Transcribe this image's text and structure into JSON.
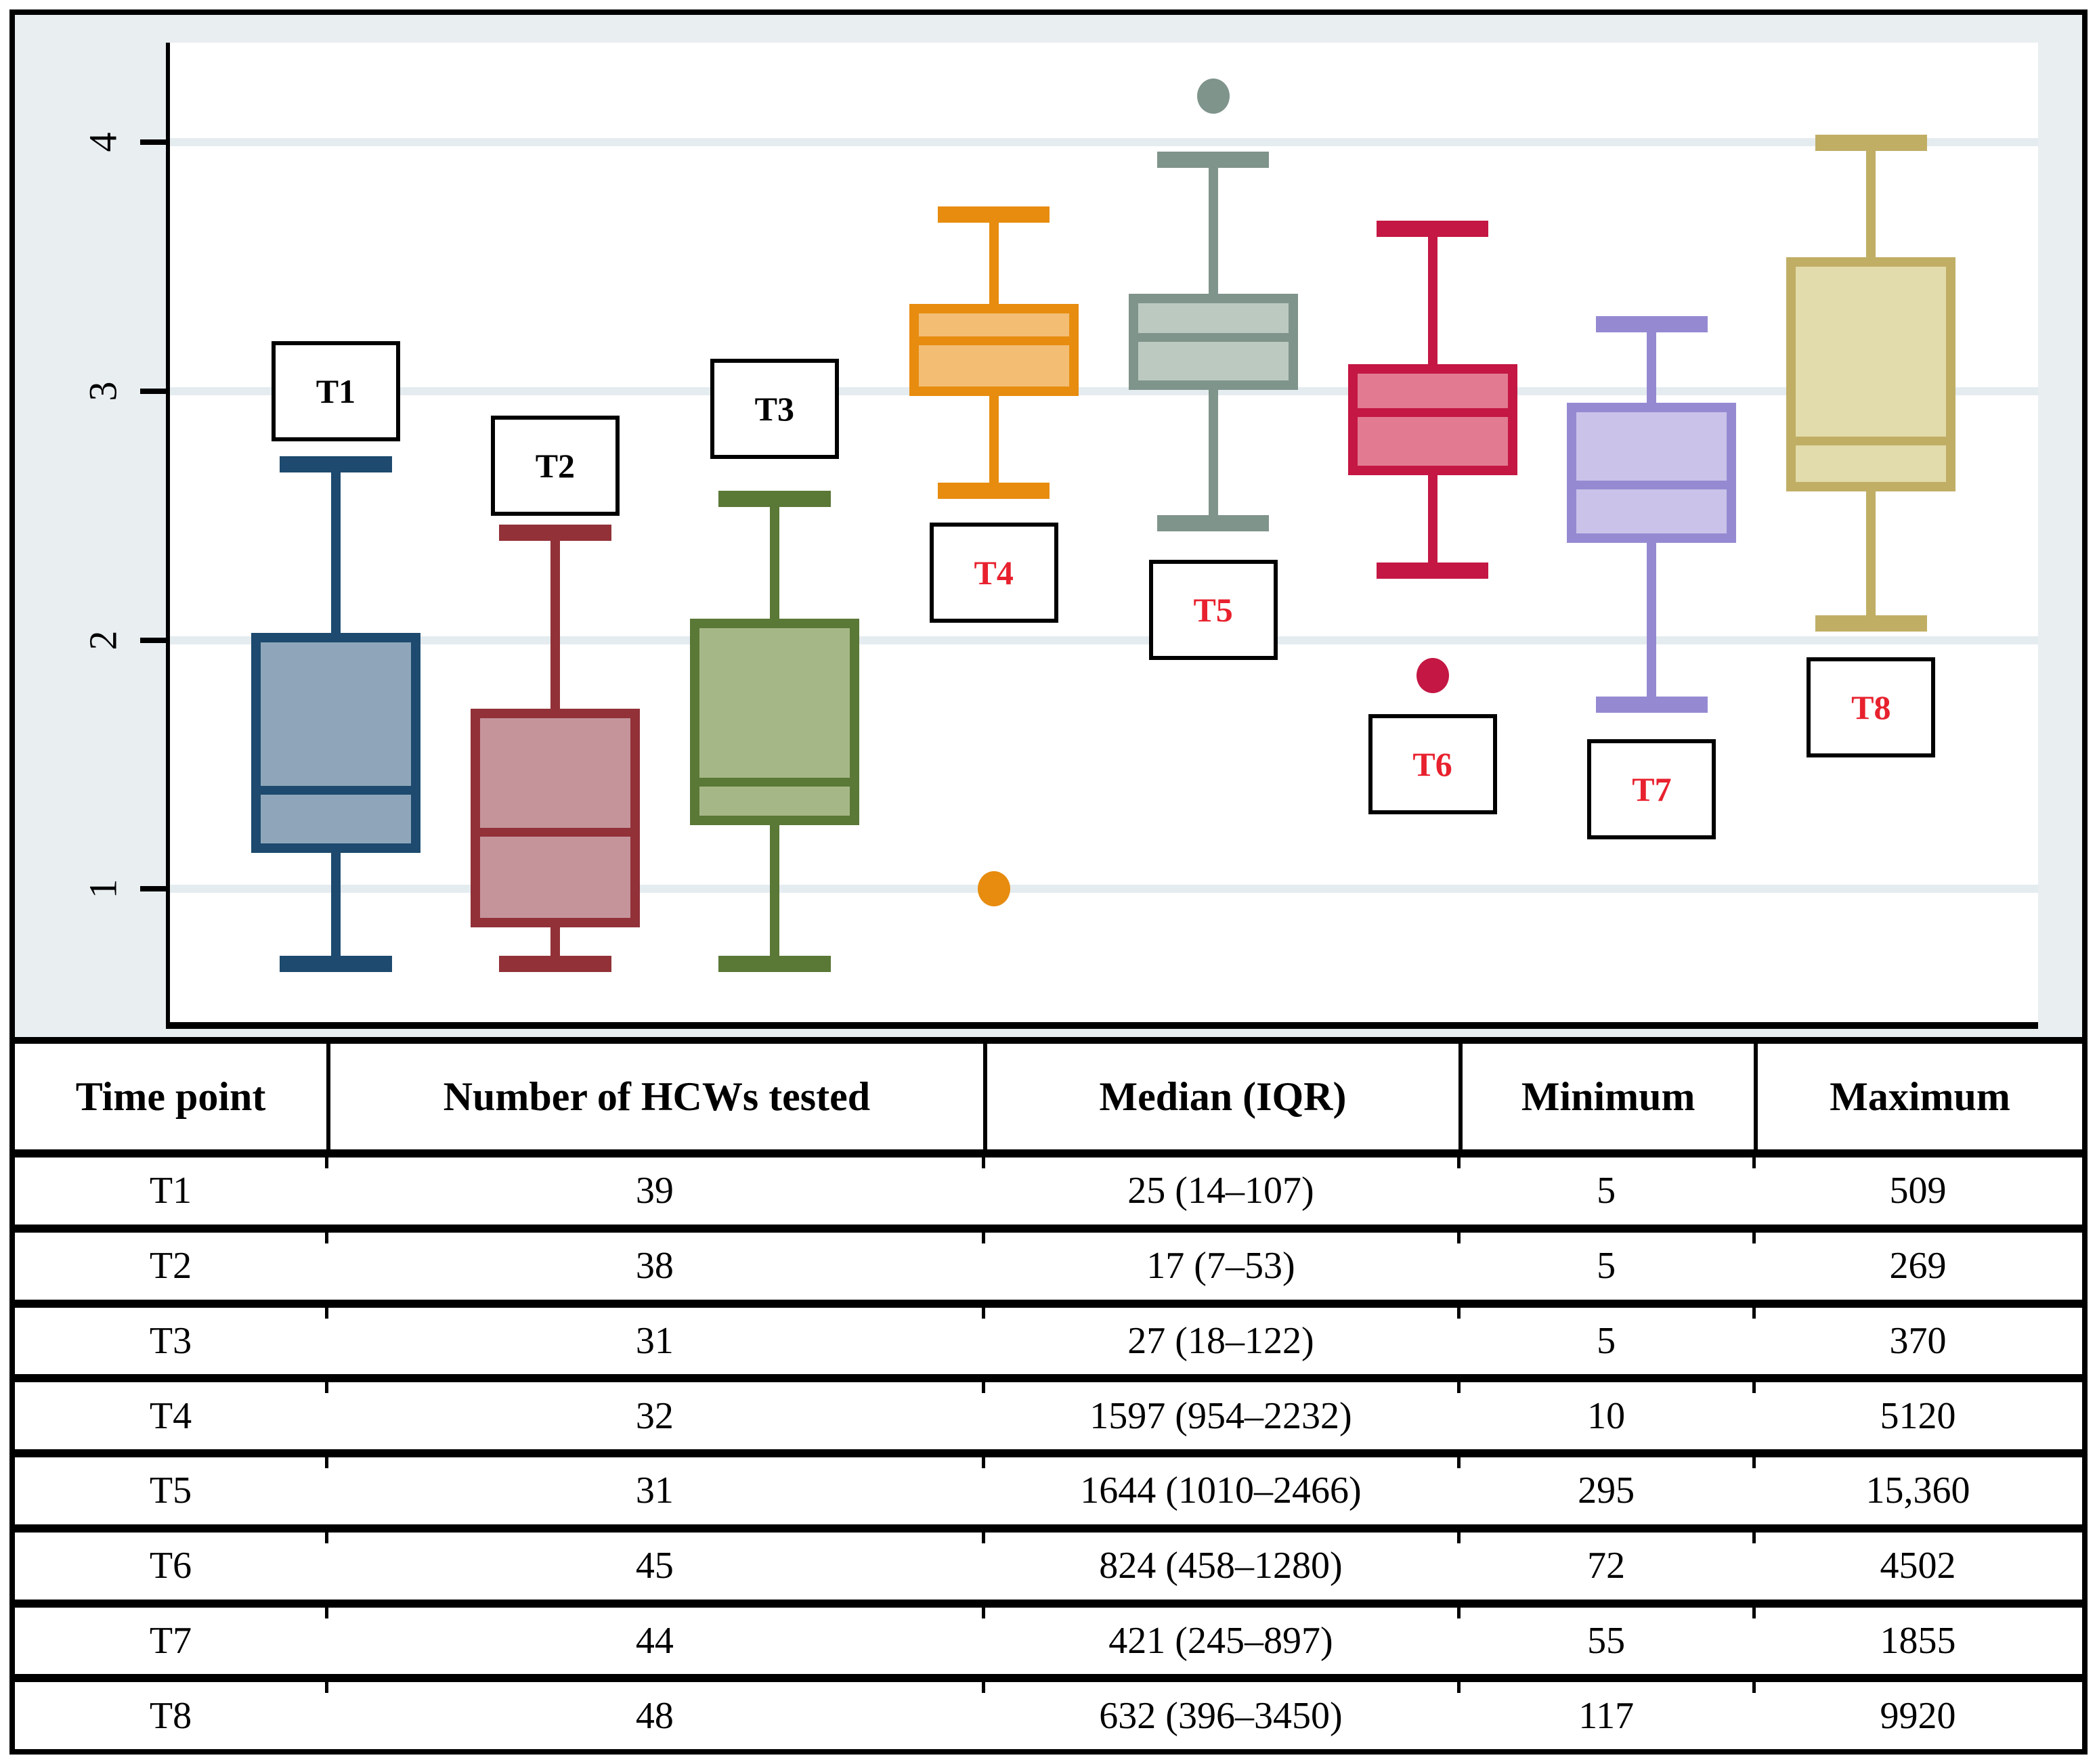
{
  "style": {
    "figure_bg": "#e9eef1",
    "plot_bg": "#ffffff",
    "gridline_color": "#e4ecf0",
    "frame_border": "#000000",
    "red_label_color": "#e8212e",
    "black_label_color": "#000000"
  },
  "chart_data": {
    "type": "box",
    "title": "",
    "xlabel": "",
    "ylabel": "",
    "grid": true,
    "y_axis": {
      "ticks": [
        "1",
        "2",
        "3",
        "4"
      ],
      "top_value": 4.4,
      "bottom_value": 0.465,
      "scale_note": "log10 of antibody titer"
    },
    "series": [
      {
        "name": "T1",
        "stroke": "#1d4a6e",
        "fill": "#8fa6ba",
        "label_text_color": "#000000",
        "label_center_value": 3.0,
        "whisker_low": 0.699,
        "q1": 1.146,
        "median": 1.398,
        "q3": 2.029,
        "whisker_high": 2.707,
        "outliers": [],
        "values": {
          "n": "39",
          "median": "25",
          "iqr": "14–107",
          "min": "5",
          "max": "509"
        }
      },
      {
        "name": "T2",
        "stroke": "#923138",
        "fill": "#c5949b",
        "label_text_color": "#000000",
        "label_center_value": 2.7,
        "whisker_low": 0.699,
        "q1": 0.845,
        "median": 1.23,
        "q3": 1.724,
        "whisker_high": 2.43,
        "outliers": [],
        "values": {
          "n": "38",
          "median": "17",
          "iqr": "7–53",
          "min": "5",
          "max": "269"
        }
      },
      {
        "name": "T3",
        "stroke": "#5a7836",
        "fill": "#a6b787",
        "label_text_color": "#000000",
        "label_center_value": 2.93,
        "whisker_low": 0.699,
        "q1": 1.255,
        "median": 1.431,
        "q3": 2.086,
        "whisker_high": 2.568,
        "outliers": [],
        "values": {
          "n": "31",
          "median": "27",
          "iqr": "18–122",
          "min": "5",
          "max": "370"
        }
      },
      {
        "name": "T4",
        "stroke": "#e78c0f",
        "fill": "#f3bd74",
        "label_text_color": "#e8212e",
        "label_center_value": 2.27,
        "whisker_low": 2.6,
        "q1": 2.98,
        "median": 3.203,
        "q3": 3.349,
        "whisker_high": 3.709,
        "outliers": [
          1.0
        ],
        "values": {
          "n": "32",
          "median": "1597",
          "iqr": "954–2232",
          "min": "10",
          "max": "5120"
        }
      },
      {
        "name": "T5",
        "stroke": "#7f948b",
        "fill": "#bcc9c1",
        "label_text_color": "#e8212e",
        "label_center_value": 2.12,
        "whisker_low": 2.47,
        "q1": 3.004,
        "median": 3.216,
        "q3": 3.392,
        "whisker_high": 3.93,
        "outliers": [
          4.186
        ],
        "values": {
          "n": "31",
          "median": "1644",
          "iqr": "1010–2466",
          "min": "295",
          "max": "15,360"
        }
      },
      {
        "name": "T6",
        "stroke": "#c41743",
        "fill": "#e27a92",
        "label_text_color": "#e8212e",
        "label_center_value": 1.5,
        "whisker_low": 2.28,
        "q1": 2.661,
        "median": 2.916,
        "q3": 3.107,
        "whisker_high": 3.653,
        "outliers": [
          1.857
        ],
        "values": {
          "n": "45",
          "median": "824",
          "iqr": "458–1280",
          "min": "72",
          "max": "4502"
        }
      },
      {
        "name": "T7",
        "stroke": "#958ad2",
        "fill": "#cac2e9",
        "label_text_color": "#e8212e",
        "label_center_value": 1.4,
        "whisker_low": 1.74,
        "q1": 2.389,
        "median": 2.624,
        "q3": 2.953,
        "whisker_high": 3.268,
        "outliers": [],
        "values": {
          "n": "44",
          "median": "421",
          "iqr": "245–897",
          "min": "55",
          "max": "1855"
        }
      },
      {
        "name": "T8",
        "stroke": "#c0ae65",
        "fill": "#e2dbab",
        "label_text_color": "#e8212e",
        "label_center_value": 1.73,
        "whisker_low": 2.068,
        "q1": 2.598,
        "median": 2.801,
        "q3": 3.538,
        "whisker_high": 3.997,
        "outliers": [],
        "values": {
          "n": "48",
          "median": "632",
          "iqr": "396–3450",
          "min": "117",
          "max": "9920"
        }
      }
    ]
  },
  "table": {
    "columns": [
      "Time point",
      "Number of HCWs tested",
      "Median (IQR)",
      "Minimum",
      "Maximum"
    ],
    "rows": [
      [
        "T1",
        "39",
        "25 (14–107)",
        "5",
        "509"
      ],
      [
        "T2",
        "38",
        "17 (7–53)",
        "5",
        "269"
      ],
      [
        "T3",
        "31",
        "27 (18–122)",
        "5",
        "370"
      ],
      [
        "T4",
        "32",
        "1597 (954–2232)",
        "10",
        "5120"
      ],
      [
        "T5",
        "31",
        "1644 (1010–2466)",
        "295",
        "15,360"
      ],
      [
        "T6",
        "45",
        "824 (458–1280)",
        "72",
        "4502"
      ],
      [
        "T7",
        "44",
        "421 (245–897)",
        "55",
        "1855"
      ],
      [
        "T8",
        "48",
        "632 (396–3450)",
        "117",
        "9920"
      ]
    ]
  }
}
